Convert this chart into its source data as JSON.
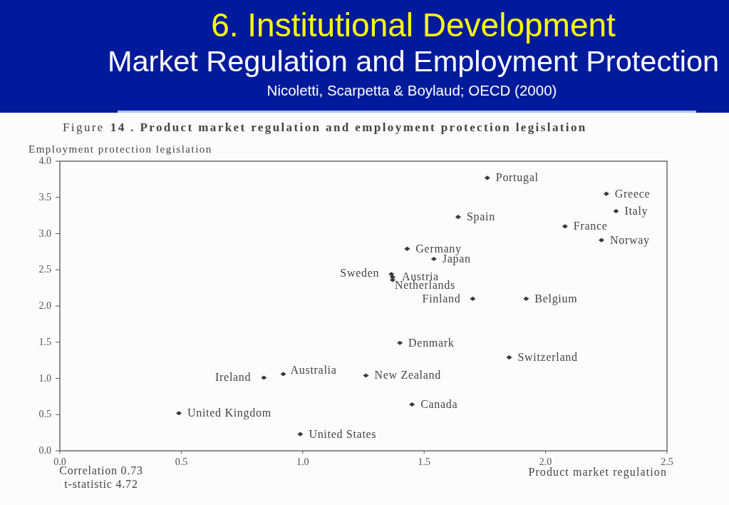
{
  "chart_data": {
    "type": "scatter",
    "title": "6. Institutional Development",
    "subtitle": "Market Regulation and Employment Protection",
    "xlabel": "Product market regulation",
    "ylabel": "Employment protection legislation",
    "annotations": [
      "Nicoletti, Scarpetta & Boylaud; OECD (2000)",
      "Figure 14 . Product market regulation and employment protection legislation",
      "Correlation 0.73",
      "t-statistic 4.72"
    ],
    "xlim": [
      0,
      2.5
    ],
    "ylim": [
      0,
      4
    ],
    "xticks": [
      {
        "value": 0,
        "label": "0.0"
      },
      0.5,
      {
        "value": 1,
        "label": "1.0"
      },
      1.5,
      {
        "value": 2,
        "label": "2.0"
      },
      2.5
    ],
    "yticks": [
      {
        "value": 0,
        "label": "0.0"
      },
      0.5,
      {
        "value": 1,
        "label": "1.0"
      },
      1.5,
      {
        "value": 2,
        "label": "2.0"
      },
      2.5,
      {
        "value": 3,
        "label": "3.0"
      },
      3.5,
      {
        "value": 4,
        "label": "4.0"
      }
    ],
    "marker": "diamond",
    "series": [
      {
        "name": "Portugal",
        "color": "#3a3a3a",
        "x": [
          1.76
        ],
        "values": [
          3.77
        ]
      },
      {
        "name": "Greece",
        "color": "#3a3a3a",
        "x": [
          2.25
        ],
        "values": [
          3.55
        ]
      },
      {
        "name": "Italy",
        "color": "#3a3a3a",
        "x": [
          2.29
        ],
        "values": [
          3.31
        ]
      },
      {
        "name": "Spain",
        "color": "#3a3a3a",
        "x": [
          1.64
        ],
        "values": [
          3.23
        ]
      },
      {
        "name": "France",
        "color": "#3a3a3a",
        "x": [
          2.08
        ],
        "values": [
          3.1
        ]
      },
      {
        "name": "Norway",
        "color": "#3a3a3a",
        "x": [
          2.23
        ],
        "values": [
          2.91
        ]
      },
      {
        "name": "Germany",
        "color": "#3a3a3a",
        "x": [
          1.43
        ],
        "values": [
          2.79
        ]
      },
      {
        "name": "Japan",
        "color": "#3a3a3a",
        "x": [
          1.54
        ],
        "values": [
          2.65
        ]
      },
      {
        "name": "Sweden",
        "color": "#3a3a3a",
        "x": [
          1.365
        ],
        "values": [
          2.44
        ]
      },
      {
        "name": "Austria",
        "color": "#3a3a3a",
        "x": [
          1.37
        ],
        "values": [
          2.4
        ]
      },
      {
        "name": "Netherlands",
        "color": "#3a3a3a",
        "x": [
          1.37
        ],
        "values": [
          2.36
        ]
      },
      {
        "name": "Finland",
        "color": "#3a3a3a",
        "x": [
          1.7
        ],
        "values": [
          2.1
        ]
      },
      {
        "name": "Belgium",
        "color": "#3a3a3a",
        "x": [
          1.92
        ],
        "values": [
          2.1
        ]
      },
      {
        "name": "Denmark",
        "color": "#3a3a3a",
        "x": [
          1.4
        ],
        "values": [
          1.49
        ]
      },
      {
        "name": "Switzerland",
        "color": "#3a3a3a",
        "x": [
          1.85
        ],
        "values": [
          1.29
        ]
      },
      {
        "name": "Ireland",
        "color": "#3a3a3a",
        "x": [
          0.84
        ],
        "values": [
          1.01
        ]
      },
      {
        "name": "Australia",
        "color": "#3a3a3a",
        "x": [
          0.92
        ],
        "values": [
          1.06
        ]
      },
      {
        "name": "New Zealand",
        "color": "#3a3a3a",
        "x": [
          1.26
        ],
        "values": [
          1.04
        ]
      },
      {
        "name": "Canada",
        "color": "#3a3a3a",
        "x": [
          1.45
        ],
        "values": [
          0.64
        ]
      },
      {
        "name": "United Kingdom",
        "color": "#3a3a3a",
        "x": [
          0.49
        ],
        "values": [
          0.52
        ]
      },
      {
        "name": "United States",
        "color": "#3a3a3a",
        "x": [
          0.99
        ],
        "values": [
          0.23
        ]
      }
    ]
  }
}
